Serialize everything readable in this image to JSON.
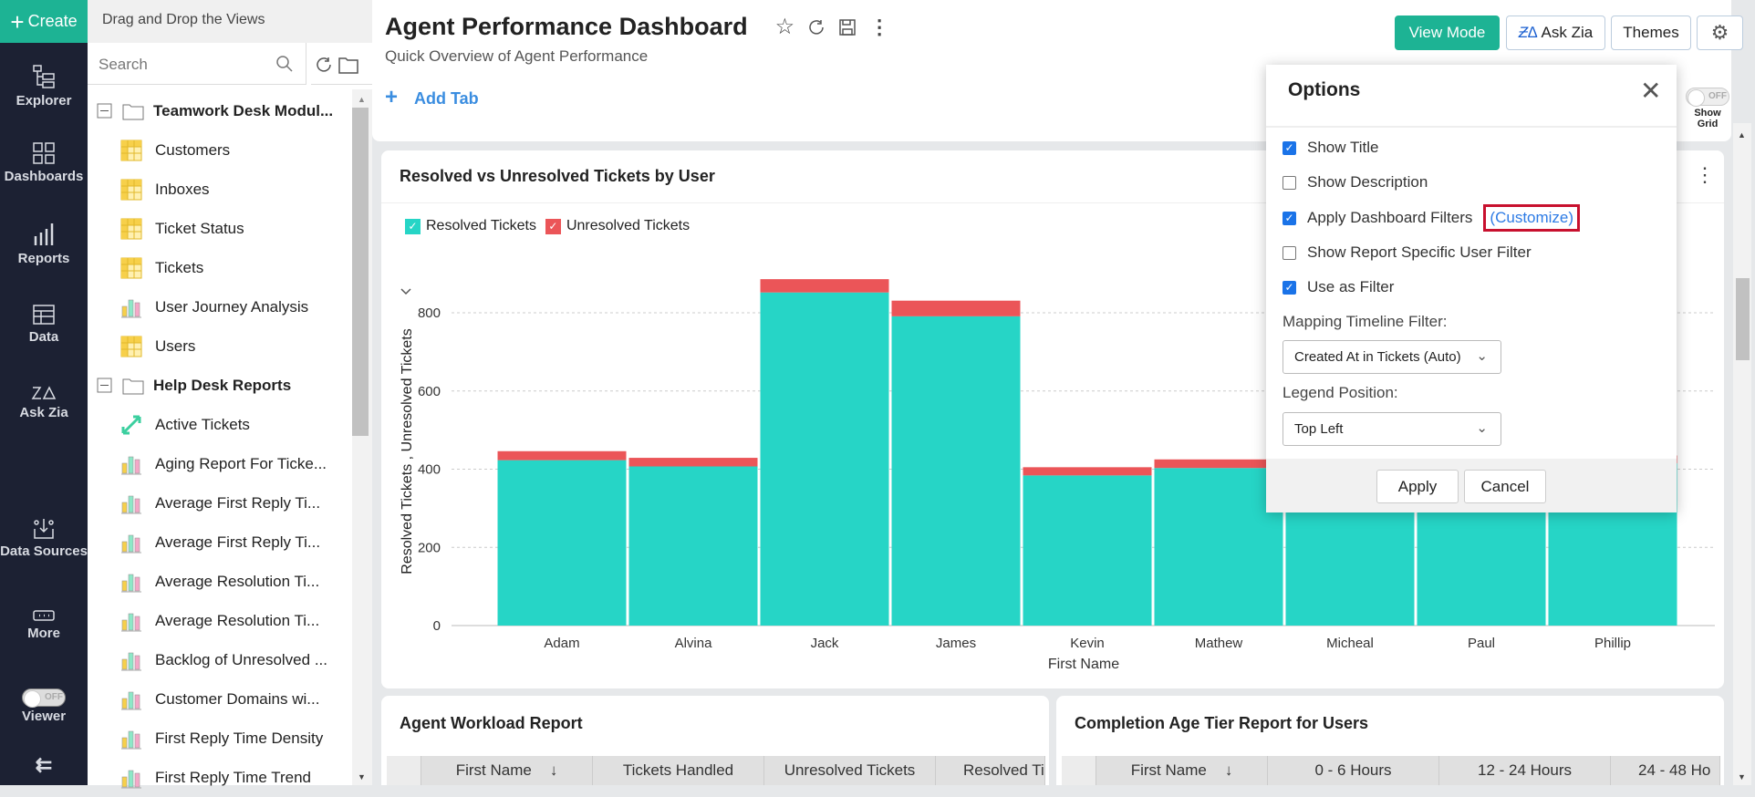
{
  "nav": {
    "create": "Create",
    "items": [
      {
        "label": "Explorer",
        "icon": "explorer-icon"
      },
      {
        "label": "Dashboards",
        "icon": "dashboards-icon"
      },
      {
        "label": "Reports",
        "icon": "reports-icon"
      },
      {
        "label": "Data",
        "icon": "data-icon"
      },
      {
        "label": "Ask Zia",
        "icon": "zia-icon"
      },
      {
        "label": "Data Sources",
        "icon": "data-sources-icon"
      },
      {
        "label": "More",
        "icon": "more-icon"
      }
    ],
    "viewer_label": "Viewer",
    "viewer_toggle": "OFF"
  },
  "explorer": {
    "header": "Drag and Drop the Views",
    "search_placeholder": "Search",
    "folders": [
      {
        "label": "Teamwork Desk Modul...",
        "items": [
          {
            "label": "Customers",
            "type": "table"
          },
          {
            "label": "Inboxes",
            "type": "table"
          },
          {
            "label": "Ticket Status",
            "type": "table"
          },
          {
            "label": "Tickets",
            "type": "table"
          },
          {
            "label": "User Journey Analysis",
            "type": "chart"
          },
          {
            "label": "Users",
            "type": "table"
          }
        ]
      },
      {
        "label": "Help Desk Reports",
        "items": [
          {
            "label": "Active Tickets",
            "type": "pivot"
          },
          {
            "label": "Aging Report For Ticke...",
            "type": "chart"
          },
          {
            "label": "Average First Reply Ti...",
            "type": "chart"
          },
          {
            "label": "Average First Reply Ti...",
            "type": "chart"
          },
          {
            "label": "Average Resolution Ti...",
            "type": "chart"
          },
          {
            "label": "Average Resolution Ti...",
            "type": "chart"
          },
          {
            "label": "Backlog of Unresolved ...",
            "type": "chart"
          },
          {
            "label": "Customer Domains wi...",
            "type": "chart"
          },
          {
            "label": "First Reply Time Density",
            "type": "chart"
          },
          {
            "label": "First Reply Time Trend",
            "type": "chart"
          }
        ]
      }
    ]
  },
  "header": {
    "title": "Agent Performance Dashboard",
    "subtitle": "Quick Overview of Agent Performance",
    "add_tab": "Add Tab",
    "view_mode": "View Mode",
    "ask_zia": "Ask Zia",
    "themes": "Themes",
    "show_grid_label": "Show Grid",
    "show_grid_toggle": "OFF"
  },
  "colors": {
    "accent": "#1db394",
    "resolved": "#26d5c6",
    "unresolved": "#eb5558",
    "link": "#2d7be5"
  },
  "chart_data": {
    "type": "bar",
    "stacked": true,
    "title": "Resolved vs Unresolved Tickets by User",
    "xlabel": "First Name",
    "ylabel": "Resolved Tickets , Unresolved Tickets",
    "ylim": [
      0,
      900
    ],
    "yticks": [
      0,
      200,
      400,
      600,
      800
    ],
    "grid": true,
    "legend": "top-left",
    "categories": [
      "Adam",
      "Alvina",
      "Jack",
      "James",
      "Kevin",
      "Mathew",
      "Micheal",
      "Paul",
      "Phillip"
    ],
    "series": [
      {
        "name": "Resolved Tickets",
        "color": "#26d5c6",
        "values": [
          423,
          407,
          852,
          791,
          384,
          403,
          410,
          405,
          415
        ]
      },
      {
        "name": "Unresolved Tickets",
        "color": "#eb5558",
        "values": [
          23,
          22,
          34,
          40,
          21,
          22,
          20,
          20,
          20
        ]
      }
    ]
  },
  "workload": {
    "title": "Agent Workload Report",
    "columns": [
      "First Name",
      "Tickets Handled",
      "Unresolved Tickets",
      "Resolved Ti"
    ]
  },
  "completion": {
    "title": "Completion Age Tier Report for Users",
    "columns": [
      "First Name",
      "0 - 6 Hours",
      "12 - 24 Hours",
      "24 - 48 Ho"
    ]
  },
  "options": {
    "title": "Options",
    "show_title": {
      "label": "Show Title",
      "checked": true
    },
    "show_description": {
      "label": "Show Description",
      "checked": false
    },
    "apply_filters": {
      "label": "Apply Dashboard Filters",
      "checked": true
    },
    "customize": "(Customize)",
    "user_filter": {
      "label": "Show Report Specific User Filter",
      "checked": false
    },
    "use_as_filter": {
      "label": "Use as Filter",
      "checked": true
    },
    "mapping_label": "Mapping Timeline Filter:",
    "mapping_value": "Created At in Tickets (Auto)",
    "legend_label": "Legend Position:",
    "legend_value": "Top Left",
    "apply": "Apply",
    "cancel": "Cancel"
  }
}
